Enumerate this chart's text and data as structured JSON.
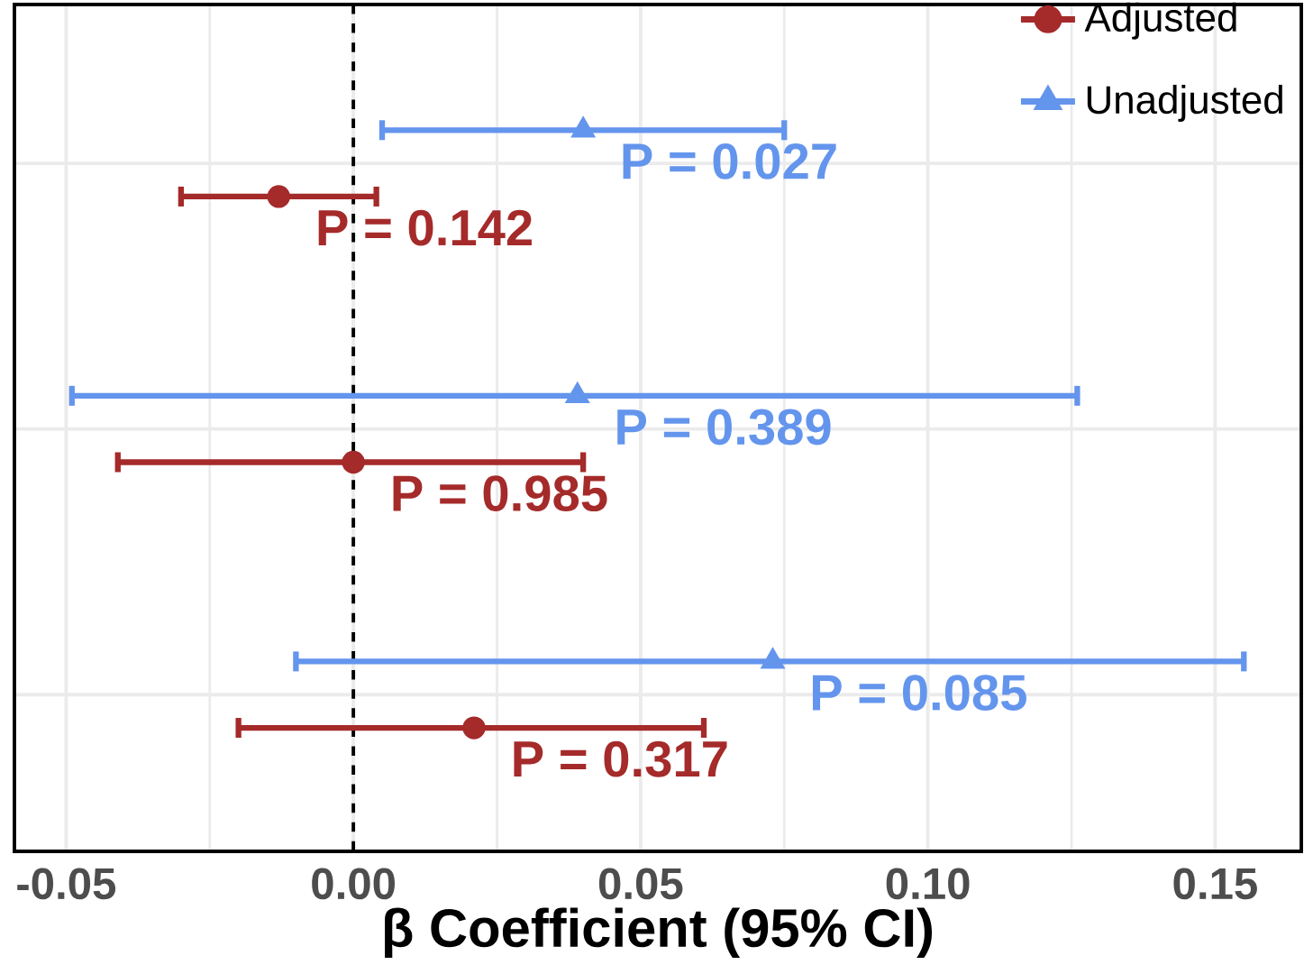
{
  "chart_data": {
    "type": "scatter",
    "orientation": "horizontal",
    "xlabel": "β Coefficient (95% CI)",
    "categories": [
      null,
      null,
      null
    ],
    "series": [
      {
        "name": "Adjusted",
        "color": "#a52a2a",
        "marker": "circle",
        "values": [
          -0.013,
          0.0,
          0.021
        ],
        "errors": [
          [
            -0.03,
            0.004
          ],
          [
            -0.041,
            0.04
          ],
          [
            -0.02,
            0.061
          ]
        ]
      },
      {
        "name": "Unadjusted",
        "color": "#6495ed",
        "marker": "triangle",
        "values": [
          0.04,
          0.039,
          0.073
        ],
        "errors": [
          [
            0.005,
            0.075
          ],
          [
            -0.049,
            0.126
          ],
          [
            -0.01,
            0.155
          ]
        ]
      }
    ],
    "annotations": [
      "P = 0.142",
      "P = 0.985",
      "P = 0.317",
      "P = 0.027",
      "P = 0.389",
      "P = 0.085"
    ],
    "xlim": [
      -0.059,
      0.165
    ],
    "xticks": [
      {
        "value": -0.05,
        "label": "-0.05"
      },
      {
        "value": 0,
        "label": "0.00"
      },
      {
        "value": 0.05,
        "label": "0.05"
      },
      {
        "value": 0.1,
        "label": "0.10"
      },
      {
        "value": 0.15,
        "label": "0.15"
      }
    ],
    "ref_lines": [
      {
        "axis": "x",
        "value": 0,
        "color": "#000000",
        "line_style": "dashed"
      }
    ],
    "grid": true,
    "legend": "top right"
  }
}
